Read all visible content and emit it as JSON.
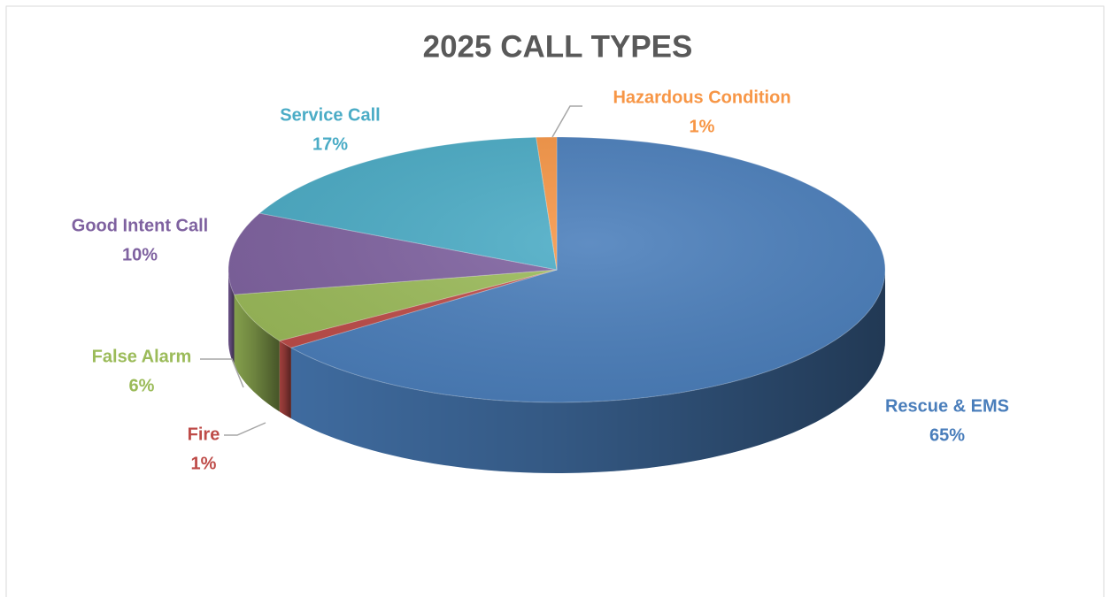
{
  "chart_data": {
    "type": "pie",
    "title": "2025 CALL TYPES",
    "categories": [
      "Rescue & EMS",
      "Fire",
      "False Alarm",
      "Good Intent Call",
      "Service Call",
      "Hazardous Condition"
    ],
    "values": [
      65,
      1,
      6,
      10,
      17,
      1
    ],
    "value_labels": [
      "65%",
      "1%",
      "6%",
      "10%",
      "17%",
      "1%"
    ],
    "colors": [
      "#4a7ebb",
      "#be4b48",
      "#9bbb59",
      "#7f62a0",
      "#4bacc6",
      "#f79646"
    ]
  }
}
